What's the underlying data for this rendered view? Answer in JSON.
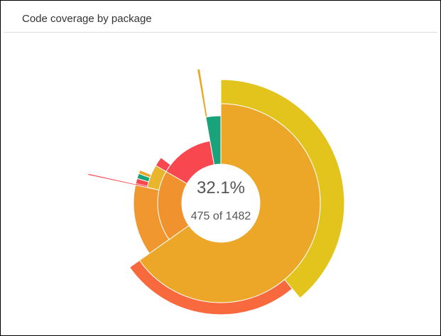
{
  "chart_data": {
    "type": "sunburst",
    "title": "Code coverage by package",
    "center_text": [
      "32.1%",
      "475 of 1482"
    ],
    "nodes": [
      {
        "size": 967,
        "levels": 5,
        "color": "#eca628",
        "children": [
          {
            "size": 577,
            "levels": 2,
            "color": "#e2c41c"
          },
          {
            "size": 390,
            "levels": 1,
            "color": "#f86a3e"
          }
        ]
      },
      {
        "size": 268,
        "levels": 2,
        "color": "#f0932f",
        "children": [
          {
            "size": 194,
            "levels": 2,
            "color": "#f0972f"
          },
          {
            "size": 74,
            "levels": 1,
            "color": "#e9b52c",
            "children": [
              {
                "size": 4,
                "levels": 1,
                "color": "#f9474f",
                "children": [
                  {
                    "size": 2,
                    "levels": 4,
                    "color": "#f9474f"
                  }
                ]
              },
              {
                "size": 14,
                "levels": 1,
                "color": "#f9474f"
              },
              {
                "size": 14,
                "levels": 1,
                "color": "#1aa37a"
              },
              {
                "size": 10,
                "levels": 1,
                "color": "#eca628"
              }
            ]
          }
        ]
      },
      {
        "size": 206,
        "levels": 2,
        "color": "#f9474f",
        "children": [
          {
            "size": 30,
            "levels": 1,
            "color": "#f9474f"
          }
        ]
      },
      {
        "size": 41,
        "levels": 4,
        "color": "#1aa37a",
        "children": [
          {
            "size": 4,
            "levels": 4,
            "color": "#eca628"
          }
        ]
      }
    ]
  }
}
